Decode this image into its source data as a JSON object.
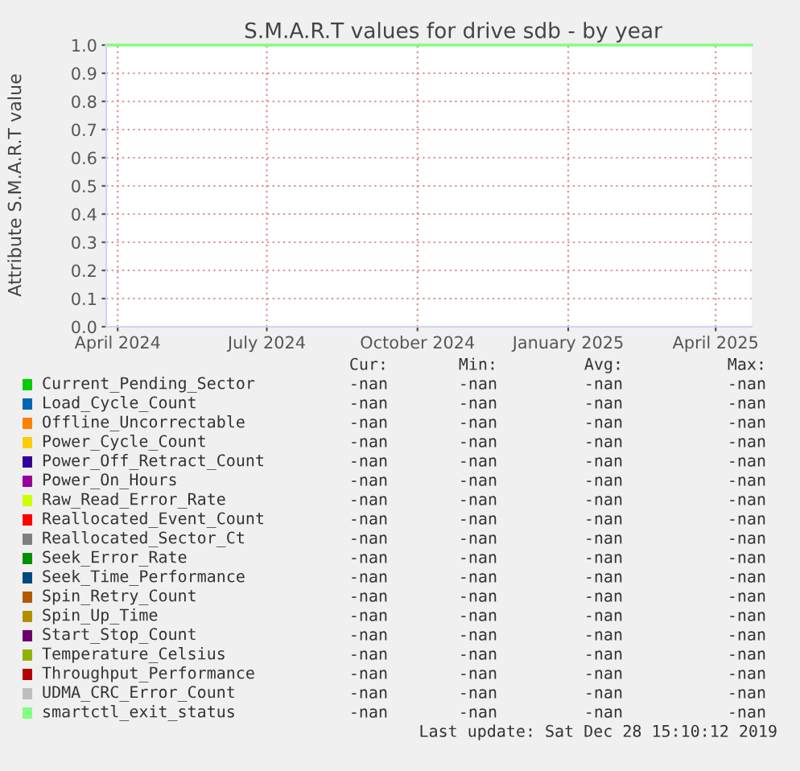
{
  "chart_data": {
    "type": "line",
    "title": "S.M.A.R.T values for drive sdb - by year",
    "ylabel": "Attribute S.M.A.R.T value",
    "x": [
      "2024-03-25",
      "2025-04-23"
    ],
    "xlim": [
      "2024-03-25",
      "2025-04-23"
    ],
    "xticks": [
      {
        "value": "2024-04-01",
        "label": "April 2024"
      },
      {
        "value": "2024-07-01",
        "label": "July 2024"
      },
      {
        "value": "2024-10-01",
        "label": "October 2024"
      },
      {
        "value": "2025-01-01",
        "label": "January 2025"
      },
      {
        "value": "2025-04-01",
        "label": "April 2025"
      }
    ],
    "ylim": [
      0,
      1
    ],
    "yticks": [
      {
        "value": 0,
        "label": "0.0"
      },
      0.1,
      0.2,
      0.3,
      0.4,
      0.5,
      0.6,
      0.7,
      0.8,
      0.9,
      {
        "value": 1,
        "label": "1.0"
      }
    ],
    "grid": true,
    "legend": "bottom",
    "series": [
      {
        "name": "Current_Pending_Sector",
        "color": "#00cc00",
        "values": [
          null,
          null
        ]
      },
      {
        "name": "Load_Cycle_Count",
        "color": "#0066b3",
        "values": [
          null,
          null
        ]
      },
      {
        "name": "Offline_Uncorrectable",
        "color": "#ff8000",
        "values": [
          null,
          null
        ]
      },
      {
        "name": "Power_Cycle_Count",
        "color": "#ffcc00",
        "values": [
          null,
          null
        ]
      },
      {
        "name": "Power_Off_Retract_Count",
        "color": "#330099",
        "values": [
          null,
          null
        ]
      },
      {
        "name": "Power_On_Hours",
        "color": "#990099",
        "values": [
          null,
          null
        ]
      },
      {
        "name": "Raw_Read_Error_Rate",
        "color": "#ccff00",
        "values": [
          null,
          null
        ]
      },
      {
        "name": "Reallocated_Event_Count",
        "color": "#ff0000",
        "values": [
          null,
          null
        ]
      },
      {
        "name": "Reallocated_Sector_Ct",
        "color": "#808080",
        "values": [
          null,
          null
        ]
      },
      {
        "name": "Seek_Error_Rate",
        "color": "#008f00",
        "values": [
          null,
          null
        ]
      },
      {
        "name": "Seek_Time_Performance",
        "color": "#00487d",
        "values": [
          null,
          null
        ]
      },
      {
        "name": "Spin_Retry_Count",
        "color": "#b35a00",
        "values": [
          null,
          null
        ]
      },
      {
        "name": "Spin_Up_Time",
        "color": "#b38f00",
        "values": [
          null,
          null
        ]
      },
      {
        "name": "Start_Stop_Count",
        "color": "#6b006b",
        "values": [
          null,
          null
        ]
      },
      {
        "name": "Temperature_Celsius",
        "color": "#8fb300",
        "values": [
          null,
          null
        ]
      },
      {
        "name": "Throughput_Performance",
        "color": "#b30000",
        "values": [
          null,
          null
        ]
      },
      {
        "name": "UDMA_CRC_Error_Count",
        "color": "#bebebe",
        "values": [
          null,
          null
        ]
      },
      {
        "name": "smartctl_exit_status",
        "color": "#80ff80",
        "values": [
          1.0,
          1.0
        ]
      }
    ],
    "annotations": [
      "Cur:",
      "Min:",
      "Avg:",
      "Max:",
      "-nan",
      "-nan",
      "-nan",
      "-nan",
      "-nan",
      "-nan",
      "-nan",
      "-nan",
      "-nan",
      "-nan",
      "-nan",
      "-nan",
      "-nan",
      "-nan",
      "-nan",
      "-nan",
      "-nan",
      "-nan",
      "-nan",
      "-nan",
      "-nan",
      "-nan",
      "-nan",
      "-nan",
      "-nan",
      "-nan",
      "-nan",
      "-nan",
      "-nan",
      "-nan",
      "-nan",
      "-nan",
      "-nan",
      "-nan",
      "-nan",
      "-nan",
      "-nan",
      "-nan",
      "-nan",
      "-nan",
      "-nan",
      "-nan",
      "-nan",
      "-nan",
      "-nan",
      "-nan",
      "-nan",
      "-nan",
      "-nan",
      "-nan",
      "-nan",
      "-nan",
      "-nan",
      "-nan",
      "-nan",
      "-nan",
      "-nan",
      "-nan",
      "-nan",
      "-nan",
      "-nan",
      "-nan",
      "-nan",
      "-nan",
      "-nan",
      "-nan",
      "-nan",
      "-nan",
      "-nan",
      "-nan",
      "-nan",
      "-nan",
      "Last update: Sat Dec 28 15:10:12 2019"
    ]
  }
}
